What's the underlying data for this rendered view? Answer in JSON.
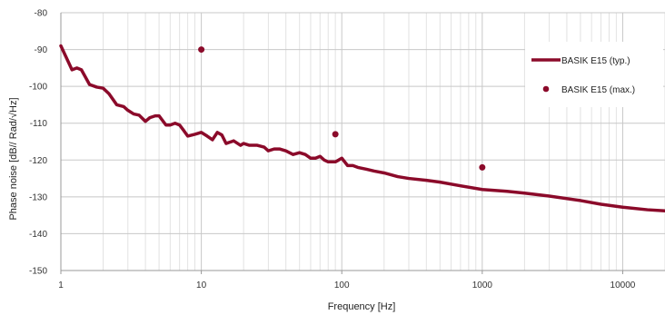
{
  "chart_data": {
    "type": "line",
    "title": "",
    "xlabel": "Frequency [Hz]",
    "ylabel": "Phase noise [dB// Rad/√Hz]",
    "x_scale": "log",
    "xlim": [
      1,
      20000
    ],
    "ylim": [
      -150,
      -80
    ],
    "x_ticks": [
      {
        "value": 1,
        "label": "1"
      },
      {
        "value": 10,
        "label": "10"
      },
      {
        "value": 100,
        "label": "100"
      },
      {
        "value": 1000,
        "label": "1000"
      },
      {
        "value": 10000,
        "label": "10000"
      }
    ],
    "y_ticks": [
      -80,
      -90,
      -100,
      -110,
      -120,
      -130,
      -140,
      -150
    ],
    "grid": true,
    "legend_position": "top-right",
    "series": [
      {
        "name": "BASIK E15 (typ.)",
        "kind": "line",
        "color": "#8b0a2a",
        "x": [
          1,
          1.2,
          1.3,
          1.4,
          1.6,
          1.8,
          2.0,
          2.2,
          2.5,
          2.8,
          3.0,
          3.3,
          3.6,
          4.0,
          4.3,
          4.7,
          5.0,
          5.6,
          6.0,
          6.5,
          7.0,
          7.5,
          8.0,
          9.0,
          10,
          11,
          12,
          13,
          14,
          15,
          17,
          19,
          20,
          22,
          25,
          28,
          30,
          33,
          36,
          40,
          45,
          50,
          55,
          60,
          65,
          70,
          75,
          80,
          90,
          95,
          100,
          110,
          120,
          130,
          150,
          170,
          200,
          250,
          300,
          400,
          500,
          700,
          1000,
          1500,
          2000,
          3000,
          5000,
          7000,
          10000,
          15000,
          20000
        ],
        "y": [
          -89,
          -95.5,
          -95,
          -95.5,
          -99.5,
          -100.2,
          -100.5,
          -102,
          -105,
          -105.5,
          -106.5,
          -107.5,
          -107.8,
          -109.5,
          -108.5,
          -108,
          -108,
          -110.5,
          -110.5,
          -110,
          -110.5,
          -112,
          -113.5,
          -113,
          -112.5,
          -113.5,
          -114.5,
          -112.5,
          -113.2,
          -115.5,
          -114.8,
          -116,
          -115.5,
          -116,
          -116,
          -116.5,
          -117.5,
          -117,
          -117,
          -117.5,
          -118.5,
          -118,
          -118.5,
          -119.5,
          -119.5,
          -119,
          -120,
          -120.5,
          -120.5,
          -120,
          -119.5,
          -121.5,
          -121.5,
          -122,
          -122.5,
          -123,
          -123.5,
          -124.5,
          -125,
          -125.5,
          -126,
          -127,
          -128,
          -128.5,
          -129,
          -129.8,
          -131,
          -132,
          -132.8,
          -133.5,
          -133.8
        ]
      },
      {
        "name": "BASIK E15 (max.)",
        "kind": "scatter",
        "color": "#8b0a2a",
        "x": [
          10,
          90,
          1000
        ],
        "y": [
          -90,
          -113,
          -122
        ]
      }
    ]
  }
}
